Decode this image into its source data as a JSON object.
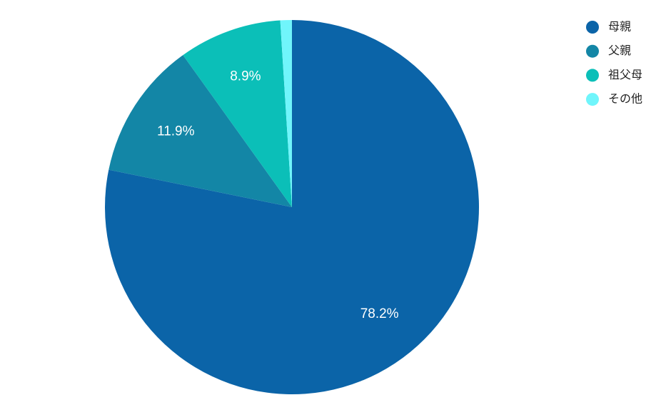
{
  "chart_data": {
    "type": "pie",
    "categories": [
      "母親",
      "父親",
      "祖父母",
      "その他"
    ],
    "values": [
      78.2,
      11.9,
      8.9,
      1.0
    ],
    "value_labels": [
      "78.2%",
      "11.9%",
      "8.9%",
      null
    ],
    "colors": [
      "#0b64a8",
      "#1386a6",
      "#0bbfb8",
      "#70f5fb"
    ],
    "legend": "top-right"
  }
}
